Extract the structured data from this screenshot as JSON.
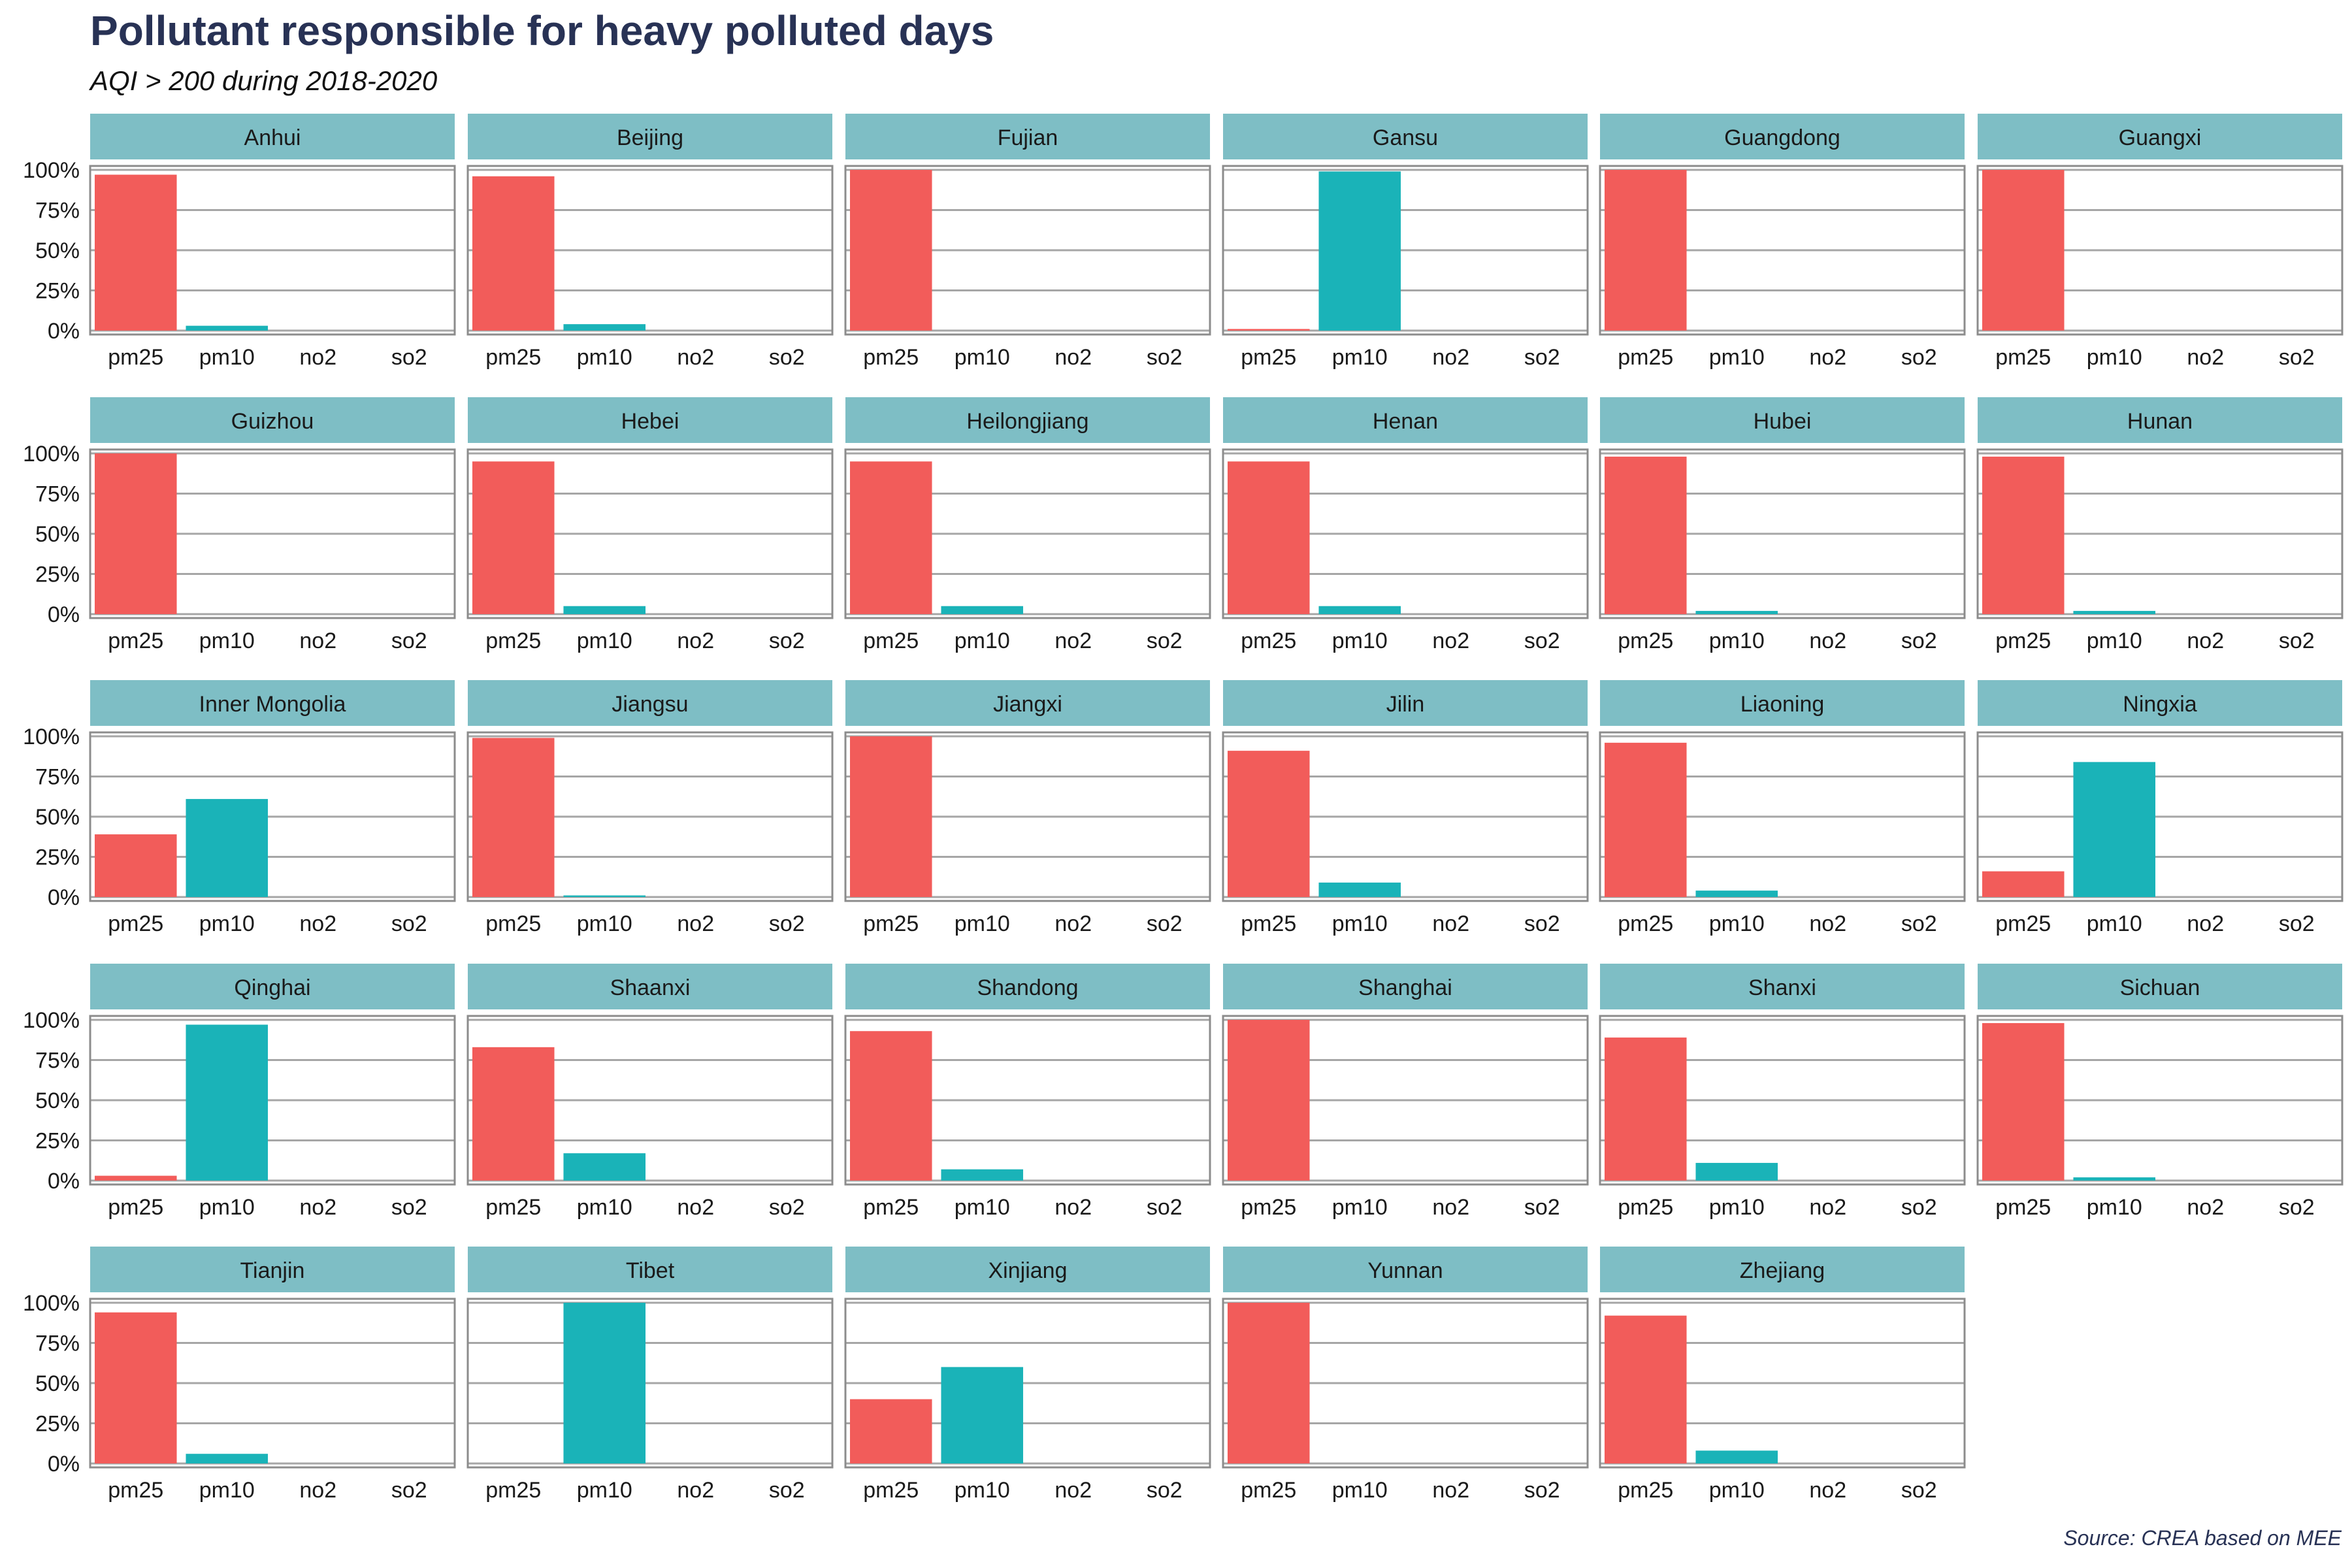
{
  "chart_data": {
    "type": "bar",
    "title": "Pollutant responsible for heavy polluted days",
    "subtitle": "AQI > 200 during 2018-2020",
    "caption": "Source: CREA based on MEE",
    "categories": [
      "pm25",
      "pm10",
      "no2",
      "so2"
    ],
    "ylim": [
      0,
      100
    ],
    "yticks": [
      0,
      25,
      50,
      75,
      100
    ],
    "ytick_labels": [
      "0%",
      "25%",
      "50%",
      "75%",
      "100%"
    ],
    "grid": true,
    "legend": "none",
    "colors": {
      "pm25": "#F25C5A",
      "pm10": "#1AB3B8",
      "no2": "#7F6FD8",
      "so2": "#C77CFF",
      "strip": "#7EBEC5",
      "grid": "#A6A6A6",
      "frame": "#8C8C8C",
      "title": "#283255"
    },
    "panels": [
      {
        "name": "Anhui",
        "values": [
          97,
          3,
          0,
          0
        ]
      },
      {
        "name": "Beijing",
        "values": [
          96,
          4,
          0,
          0
        ]
      },
      {
        "name": "Fujian",
        "values": [
          100,
          0,
          0,
          0
        ]
      },
      {
        "name": "Gansu",
        "values": [
          1,
          99,
          0,
          0
        ]
      },
      {
        "name": "Guangdong",
        "values": [
          100,
          0,
          0,
          0
        ]
      },
      {
        "name": "Guangxi",
        "values": [
          100,
          0,
          0,
          0
        ]
      },
      {
        "name": "Guizhou",
        "values": [
          100,
          0,
          0,
          0
        ]
      },
      {
        "name": "Hebei",
        "values": [
          95,
          5,
          0,
          0
        ]
      },
      {
        "name": "Heilongjiang",
        "values": [
          95,
          5,
          0,
          0
        ]
      },
      {
        "name": "Henan",
        "values": [
          95,
          5,
          0,
          0
        ]
      },
      {
        "name": "Hubei",
        "values": [
          98,
          2,
          0,
          0
        ]
      },
      {
        "name": "Hunan",
        "values": [
          98,
          2,
          0,
          0
        ]
      },
      {
        "name": "Inner Mongolia",
        "values": [
          39,
          61,
          0,
          0
        ]
      },
      {
        "name": "Jiangsu",
        "values": [
          99,
          1,
          0,
          0
        ]
      },
      {
        "name": "Jiangxi",
        "values": [
          100,
          0,
          0,
          0
        ]
      },
      {
        "name": "Jilin",
        "values": [
          91,
          9,
          0,
          0
        ]
      },
      {
        "name": "Liaoning",
        "values": [
          96,
          4,
          0,
          0
        ]
      },
      {
        "name": "Ningxia",
        "values": [
          16,
          84,
          0,
          0
        ]
      },
      {
        "name": "Qinghai",
        "values": [
          3,
          97,
          0,
          0
        ]
      },
      {
        "name": "Shaanxi",
        "values": [
          83,
          17,
          0,
          0
        ]
      },
      {
        "name": "Shandong",
        "values": [
          93,
          7,
          0,
          0
        ]
      },
      {
        "name": "Shanghai",
        "values": [
          100,
          0,
          0,
          0
        ]
      },
      {
        "name": "Shanxi",
        "values": [
          89,
          11,
          0,
          0
        ]
      },
      {
        "name": "Sichuan",
        "values": [
          98,
          2,
          0,
          0
        ]
      },
      {
        "name": "Tianjin",
        "values": [
          94,
          6,
          0,
          0
        ]
      },
      {
        "name": "Tibet",
        "values": [
          0,
          100,
          0,
          0
        ]
      },
      {
        "name": "Xinjiang",
        "values": [
          40,
          60,
          0,
          0
        ]
      },
      {
        "name": "Yunnan",
        "values": [
          100,
          0,
          0,
          0
        ]
      },
      {
        "name": "Zhejiang",
        "values": [
          92,
          8,
          0,
          0
        ]
      }
    ]
  }
}
